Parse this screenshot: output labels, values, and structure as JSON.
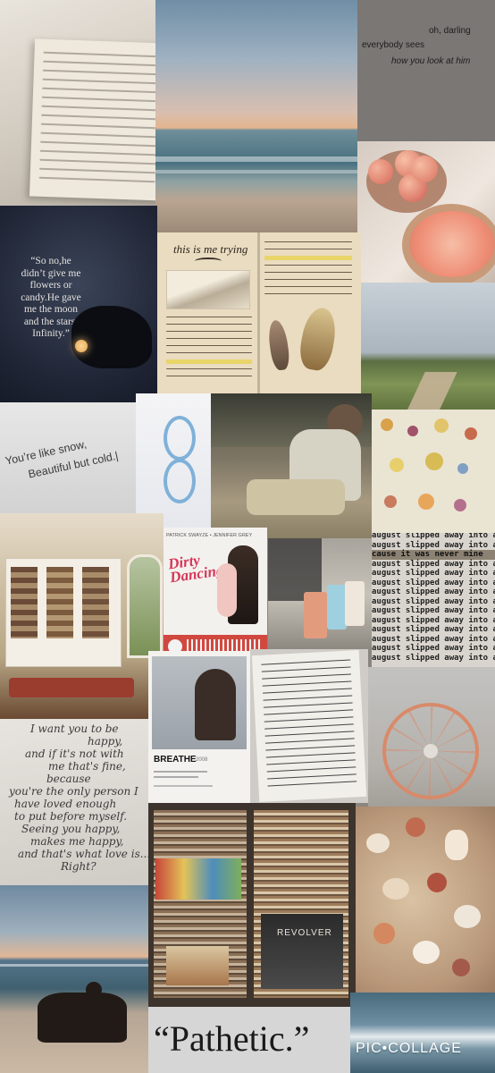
{
  "lyric_oh_darling": [
    "oh, darling",
    "everybody sees",
    "how you look at him"
  ],
  "lyric_moon_quote": [
    "“So no,he",
    "didn’t give me",
    "flowers or",
    "candy.He gave",
    "me the moon",
    "and the stars.",
    "Infinity.”"
  ],
  "book_title": "this is me trying",
  "lyric_snow": [
    "You’re like snow,",
    "Beautiful but cold.|"
  ],
  "movie_poster": {
    "actors": "PATRICK SWAYZE • JENNIFER GREY",
    "title": "Dirty Dancing"
  },
  "song_card": {
    "title": "BREATHE",
    "year": "2008"
  },
  "lyric_august": "august slipped away into a moment in time",
  "lyric_never_mine": "cause it was never mine",
  "handwritten_note": [
    "I want you to be",
    "happy,",
    "and if it's not with",
    "me that's fine,",
    "because",
    "you're the only person I",
    "have loved enough",
    "to put before myself.",
    "Seeing you happy,",
    "makes me happy,",
    "and that's what love is...",
    "Right?"
  ],
  "record_label": "REVOLVER",
  "caption_pathetic": "“Pathetic.”",
  "watermark": "PIC•COLLAGE"
}
